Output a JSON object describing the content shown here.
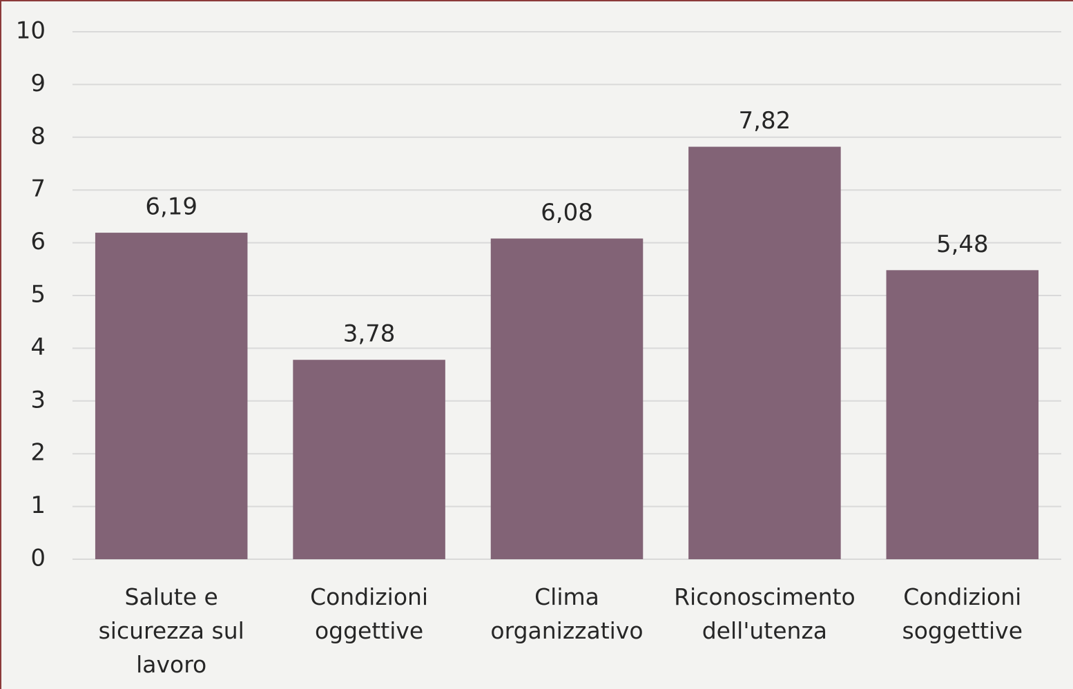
{
  "chart_data": {
    "type": "bar",
    "categories": [
      "Salute e sicurezza sul lavoro",
      "Condizioni oggettive",
      "Clima organizzativo",
      "Riconoscimento dell'utenza",
      "Condizioni soggettive"
    ],
    "values": [
      6.19,
      3.78,
      6.08,
      7.82,
      5.48
    ],
    "value_labels": [
      "6,19",
      "3,78",
      "6,08",
      "7,82",
      "5,48"
    ],
    "color": "#826376",
    "ylim": [
      0,
      10
    ],
    "yticks": [
      0,
      1,
      2,
      3,
      4,
      5,
      6,
      7,
      8,
      9,
      10
    ],
    "grid": true
  }
}
